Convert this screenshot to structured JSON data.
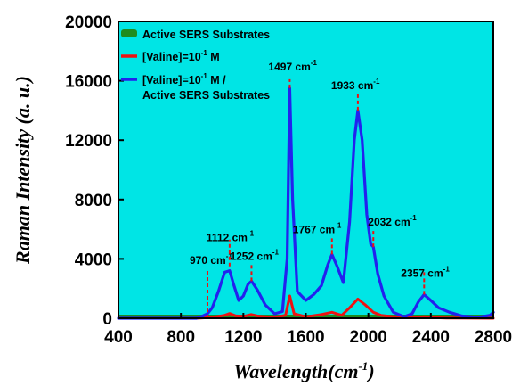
{
  "chart_data": {
    "type": "line",
    "xlabel": "Wavelength(cm",
    "xlabel_sup": "-1",
    "xlabel_suffix": ")",
    "ylabel": "Raman Intensity (a. u.)",
    "xlim": [
      400,
      2800
    ],
    "ylim": [
      0,
      20000
    ],
    "x_ticks": [
      400,
      800,
      1200,
      1600,
      2000,
      2400,
      2800
    ],
    "y_ticks": [
      0,
      4000,
      8000,
      12000,
      16000,
      20000
    ],
    "background_color": "#00e5e5",
    "legend_position": "top-left",
    "legend": [
      {
        "line1": "Active SERS Substrates",
        "color": "#1f8c1f"
      },
      {
        "line1": "[Valine]=10",
        "sup": "-1",
        "tail": " M",
        "color": "#ee1111"
      },
      {
        "line1": "[Valine]=10",
        "sup": "-1",
        "tail": " M /",
        "line2": "Active SERS Substrates",
        "color": "#2222ee"
      }
    ],
    "series": [
      {
        "name": "Active SERS Substrates",
        "color": "#1f8c1f",
        "x": [
          400,
          800,
          1000,
          1200,
          1400,
          1600,
          1800,
          2000,
          2200,
          2400,
          2600,
          2800
        ],
        "y": [
          0,
          0,
          0,
          0,
          0,
          0,
          0,
          0,
          0,
          0,
          0,
          0
        ]
      },
      {
        "name": "[Valine]=10-1 M",
        "color": "#ee1111",
        "x": [
          400,
          900,
          1000,
          1080,
          1112,
          1150,
          1200,
          1250,
          1300,
          1400,
          1470,
          1497,
          1525,
          1600,
          1700,
          1767,
          1830,
          1880,
          1933,
          1980,
          2032,
          2080,
          2200,
          2300,
          2357,
          2420,
          2500,
          2800
        ],
        "y": [
          0,
          0,
          60,
          200,
          320,
          160,
          120,
          250,
          130,
          60,
          200,
          1500,
          300,
          100,
          250,
          400,
          200,
          700,
          1300,
          900,
          400,
          200,
          60,
          40,
          100,
          40,
          20,
          0
        ]
      },
      {
        "name": "[Valine]=10-1 M / Active SERS Substrates",
        "color": "#2222ee",
        "x": [
          400,
          900,
          940,
          970,
          1000,
          1040,
          1080,
          1112,
          1140,
          1170,
          1200,
          1230,
          1252,
          1290,
          1340,
          1400,
          1450,
          1480,
          1497,
          1515,
          1545,
          1600,
          1650,
          1700,
          1740,
          1767,
          1800,
          1840,
          1880,
          1910,
          1933,
          1960,
          1990,
          2015,
          2032,
          2060,
          2100,
          2160,
          2230,
          2280,
          2320,
          2357,
          2400,
          2450,
          2520,
          2600,
          2700,
          2780,
          2800
        ],
        "y": [
          0,
          0,
          150,
          300,
          700,
          1800,
          3100,
          3200,
          2200,
          1200,
          1500,
          2300,
          2500,
          1900,
          900,
          300,
          450,
          4000,
          15500,
          8000,
          1800,
          1200,
          1600,
          2200,
          3600,
          4300,
          3500,
          2400,
          6500,
          12000,
          14000,
          12000,
          7000,
          5000,
          4800,
          3000,
          1500,
          400,
          100,
          300,
          1100,
          1600,
          1200,
          700,
          400,
          150,
          60,
          200,
          400
        ]
      }
    ],
    "annotations": [
      {
        "label": "970 cm",
        "x": 970,
        "y": 300
      },
      {
        "label": "1112 cm",
        "x": 1112,
        "y": 3500
      },
      {
        "label": "1252 cm",
        "x": 1252,
        "y": 2500
      },
      {
        "label": "1497 cm",
        "x": 1497,
        "y": 15500
      },
      {
        "label": "1767 cm",
        "x": 1767,
        "y": 4300
      },
      {
        "label": "1933 cm",
        "x": 1933,
        "y": 14000
      },
      {
        "label": "2032 cm",
        "x": 2032,
        "y": 4800
      },
      {
        "label": "2357 cm",
        "x": 2357,
        "y": 1600
      }
    ],
    "annotation_sup": "-1"
  }
}
